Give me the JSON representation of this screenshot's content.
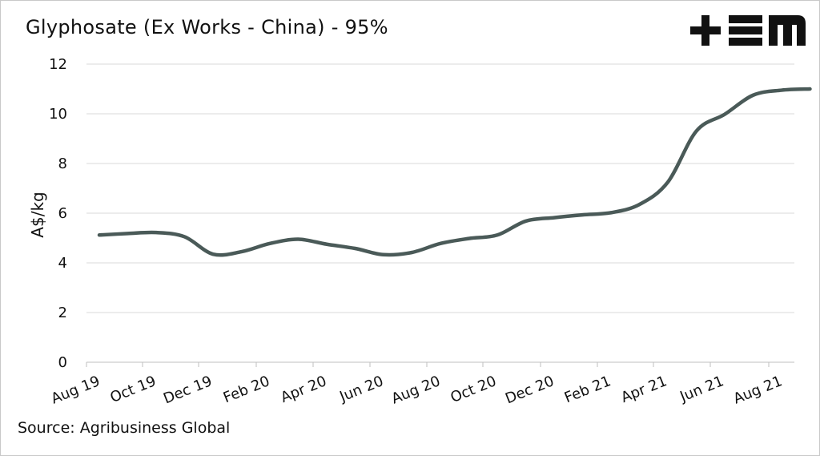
{
  "title": "Glyphosate (Ex Works - China) - 95%",
  "source": "Source: Agribusiness Global",
  "logo_text": "+EM",
  "colors": {
    "line": "#4a5a58",
    "grid": "#d9d9d9",
    "logo": "#111111"
  },
  "chart_data": {
    "type": "line",
    "title": "Glyphosate (Ex Works - China) - 95%",
    "xlabel": "",
    "ylabel": "A$/kg",
    "ylim": [
      0,
      12
    ],
    "yticks": [
      "0",
      "2",
      "4",
      "6",
      "8",
      "10",
      "12"
    ],
    "xticks": [
      "Aug 19",
      "Oct 19",
      "Dec 19",
      "Feb 20",
      "Apr 20",
      "Jun 20",
      "Aug 20",
      "Oct 20",
      "Dec 20",
      "Feb 21",
      "Apr 21",
      "Jun 21",
      "Aug 21"
    ],
    "grid": true,
    "legend": "none",
    "series": [
      {
        "x": [
          "Aug 19",
          "Sep 19",
          "Oct 19",
          "Nov 19",
          "Dec 19",
          "Jan 20",
          "Feb 20",
          "Mar 20",
          "Apr 20",
          "May 20",
          "Jun 20",
          "Jul 20",
          "Aug 20",
          "Sep 20",
          "Oct 20",
          "Nov 20",
          "Dec 20",
          "Jan 21",
          "Feb 21",
          "Mar 21",
          "Apr 21",
          "May 21",
          "Jun 21",
          "Jul 21",
          "Aug 21",
          "Sep 21"
        ],
        "values": [
          5.12,
          5.18,
          5.22,
          5.05,
          4.35,
          4.45,
          4.78,
          4.95,
          4.75,
          4.58,
          4.33,
          4.42,
          4.78,
          4.98,
          5.12,
          5.68,
          5.82,
          5.93,
          6.02,
          6.35,
          7.25,
          9.3,
          9.98,
          10.75,
          10.95,
          11.0
        ]
      }
    ]
  }
}
